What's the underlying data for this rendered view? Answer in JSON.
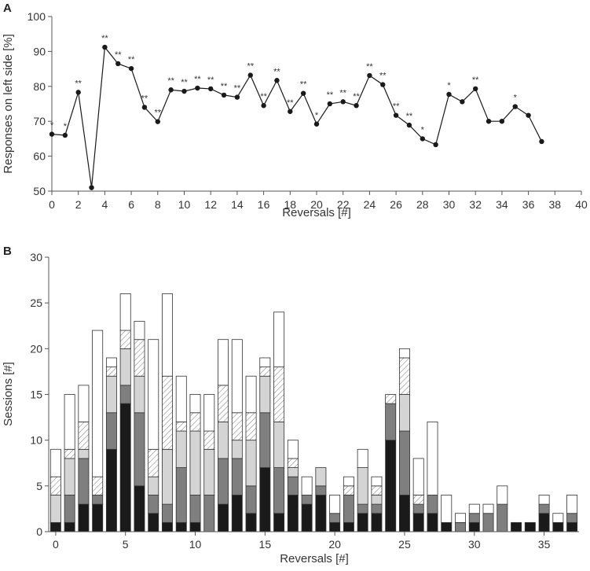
{
  "colors": {
    "axis": "#555555",
    "line": "#1a1a1a",
    "stack": [
      "#1a1a1a",
      "#7f7f7f",
      "#d4d4d4",
      "hatch",
      "#ffffff"
    ],
    "bar_edge": "#333333"
  },
  "chart_data": [
    {
      "panel": "A",
      "type": "line",
      "xlabel": "Reversals [#]",
      "ylabel": "Responses on left side [%]",
      "xlim": [
        0,
        40
      ],
      "ylim": [
        50,
        100
      ],
      "xticks": [
        0,
        2,
        4,
        6,
        8,
        10,
        12,
        14,
        16,
        18,
        20,
        22,
        24,
        26,
        28,
        30,
        32,
        34,
        36,
        38,
        40
      ],
      "yticks": [
        50,
        60,
        70,
        80,
        90,
        100
      ],
      "grid": false,
      "series": [
        {
          "x": [
            0,
            1,
            2,
            3,
            4,
            5,
            6,
            7,
            8,
            9,
            10,
            11,
            12,
            13,
            14,
            15,
            16,
            17,
            18,
            19,
            20,
            21,
            22,
            23,
            24,
            25,
            26,
            27,
            28,
            29,
            30,
            31,
            32,
            33,
            34,
            35,
            36,
            37
          ],
          "values": [
            66.3,
            66.0,
            78.3,
            51.0,
            91.2,
            86.5,
            85.1,
            74.0,
            69.9,
            79.0,
            78.6,
            79.5,
            79.3,
            77.5,
            76.9,
            83.2,
            74.5,
            81.7,
            72.8,
            78.0,
            69.2,
            75.0,
            75.6,
            74.5,
            83.1,
            80.5,
            71.7,
            68.9,
            65.0,
            63.3,
            77.7,
            75.6,
            79.3,
            70.0,
            70.0,
            74.2,
            71.7,
            64.2
          ],
          "significance": [
            "*",
            "*",
            "**",
            "",
            "**",
            "**",
            "**",
            "**",
            "**",
            "**",
            "**",
            "**",
            "**",
            "**",
            "**",
            "**",
            "**",
            "**",
            "**",
            "**",
            "*",
            "**",
            "**",
            "**",
            "**",
            "**",
            "**",
            "**",
            "*",
            "",
            "*",
            "",
            "**",
            "",
            "",
            "*",
            "",
            ""
          ]
        }
      ]
    },
    {
      "panel": "B",
      "type": "bar",
      "stacked": true,
      "xlabel": "Reversals [#]",
      "ylabel": "Sessions [#]",
      "xlim": [
        -0.5,
        37.5
      ],
      "ylim": [
        0,
        30
      ],
      "xticks": [
        0,
        5,
        10,
        15,
        20,
        25,
        30,
        35
      ],
      "yticks": [
        0,
        5,
        10,
        15,
        20,
        25,
        30
      ],
      "grid": false,
      "categories": [
        0,
        1,
        2,
        3,
        4,
        5,
        6,
        7,
        8,
        9,
        10,
        11,
        12,
        13,
        14,
        15,
        16,
        17,
        18,
        19,
        20,
        21,
        22,
        23,
        24,
        25,
        26,
        27,
        28,
        29,
        30,
        31,
        32,
        33,
        34,
        35,
        36,
        37
      ],
      "series": [
        {
          "fill": "black",
          "values": [
            1,
            1,
            3,
            3,
            9,
            14,
            5,
            2,
            1,
            1,
            1,
            0,
            3,
            4,
            2,
            7,
            2,
            4,
            3,
            4,
            1,
            1,
            2,
            2,
            10,
            4,
            2,
            2,
            1,
            0,
            1,
            0,
            0,
            1,
            1,
            2,
            1,
            1
          ]
        },
        {
          "fill": "dark-gray",
          "values": [
            0,
            3,
            5,
            1,
            4,
            2,
            8,
            2,
            2,
            6,
            3,
            4,
            5,
            4,
            3,
            6,
            5,
            2,
            1,
            1,
            1,
            3,
            1,
            1,
            4,
            7,
            1,
            2,
            0,
            1,
            1,
            2,
            3,
            0,
            0,
            1,
            0,
            1
          ]
        },
        {
          "fill": "light-gray",
          "values": [
            3,
            4,
            1,
            0,
            4,
            4,
            4,
            2,
            6,
            4,
            7,
            5,
            4,
            2,
            5,
            4,
            5,
            1,
            0,
            2,
            0,
            0,
            4,
            1,
            0,
            4,
            0,
            0,
            0,
            0,
            0,
            0,
            0,
            0,
            0,
            0,
            0,
            0
          ]
        },
        {
          "fill": "hatched",
          "values": [
            2,
            1,
            3,
            2,
            1,
            2,
            4,
            3,
            8,
            1,
            2,
            2,
            4,
            3,
            3,
            1,
            6,
            1,
            0,
            0,
            0,
            1,
            0,
            1,
            1,
            4,
            1,
            0,
            0,
            0,
            0,
            0,
            0,
            0,
            0,
            0,
            0,
            0
          ]
        },
        {
          "fill": "white",
          "values": [
            3,
            6,
            4,
            16,
            1,
            4,
            2,
            12,
            9,
            5,
            2,
            4,
            5,
            8,
            4,
            1,
            6,
            2,
            2,
            0,
            2,
            1,
            2,
            1,
            0,
            1,
            4,
            8,
            3,
            1,
            1,
            1,
            2,
            0,
            0,
            1,
            1,
            2
          ]
        }
      ]
    }
  ]
}
